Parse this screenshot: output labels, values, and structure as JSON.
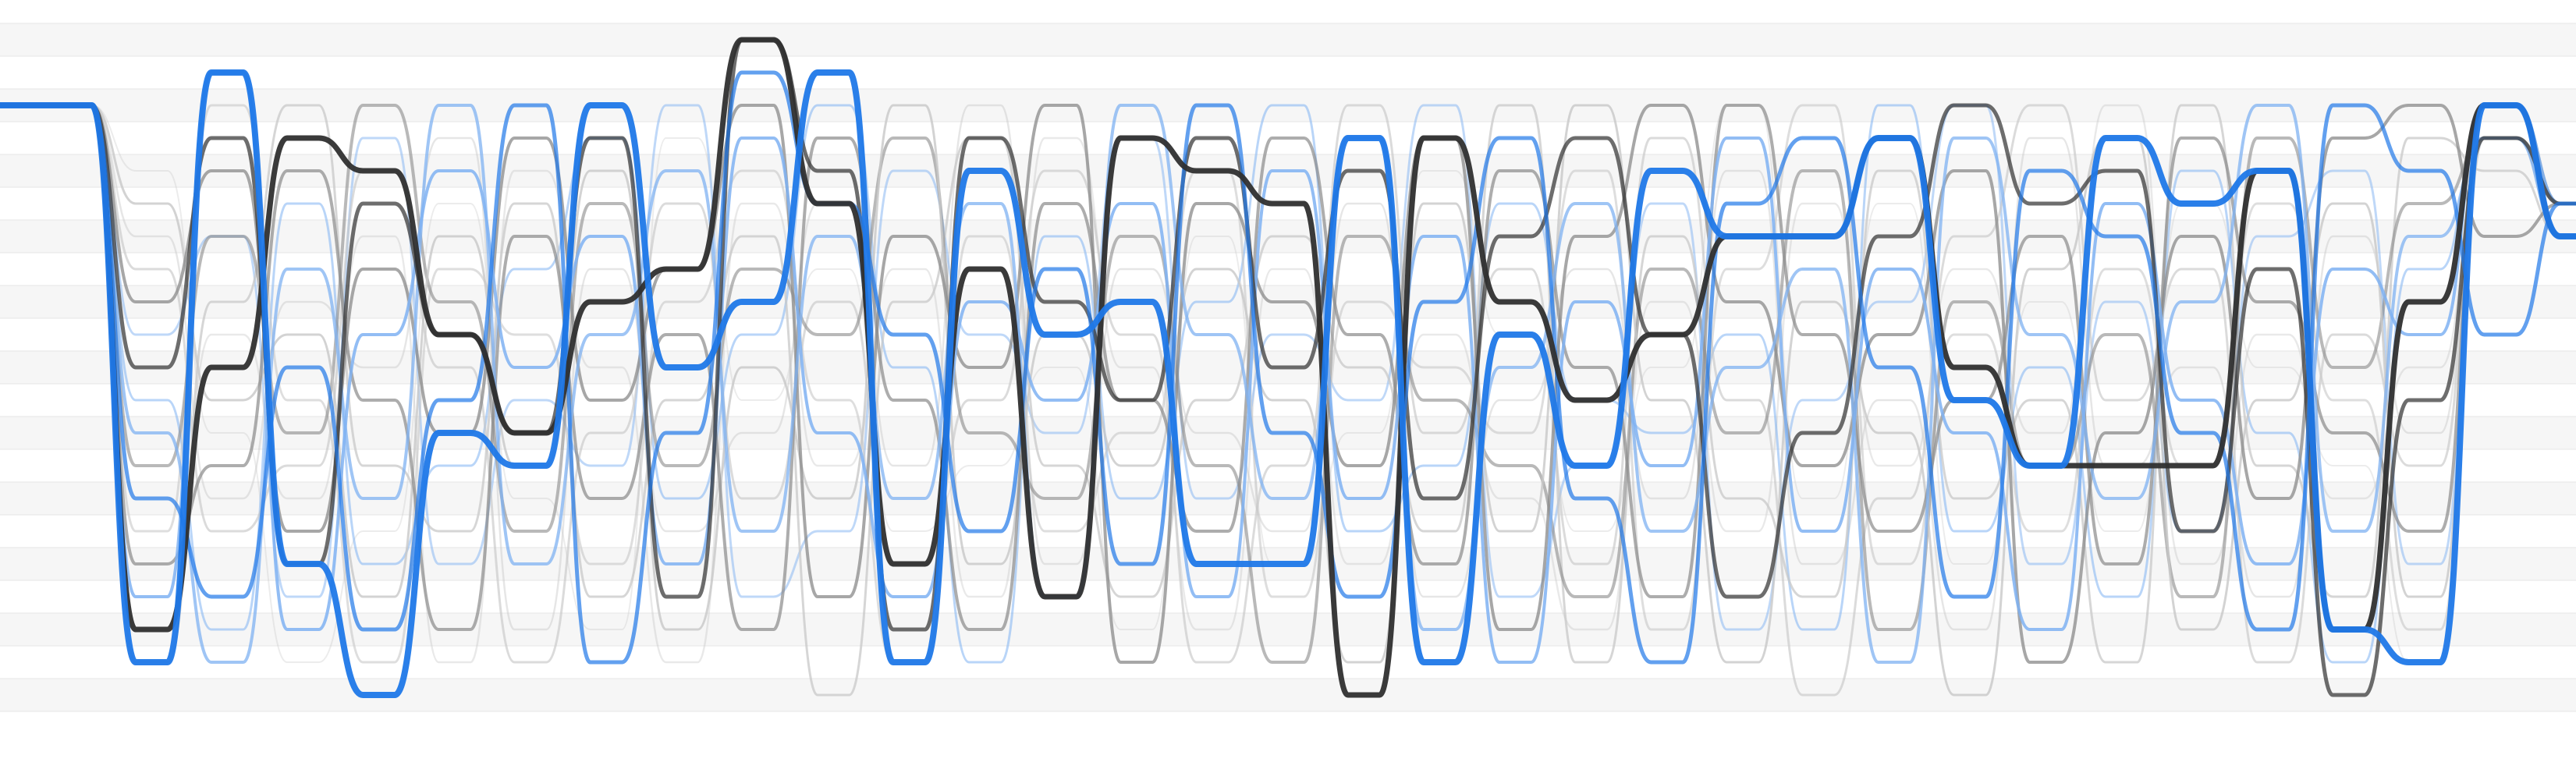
{
  "diagram": {
    "type": "line-trajectories",
    "rows": 22,
    "stages": 35,
    "colors": {
      "background": "#ffffff",
      "band_light": "#f6f6f6",
      "band_line": "#e6e6e6",
      "blue_main": "#1f78e8",
      "blue_light": "#7fb2f2",
      "black_main": "#2f2f2f",
      "gray_mid": "#8a8a8a",
      "gray_light": "#c8c8c8"
    },
    "trajectories": [
      {
        "name": "black-main",
        "color": "black_main",
        "opacity": 0.95,
        "width": 7,
        "rows": [
          2,
          2,
          18,
          10,
          3,
          4,
          9,
          12,
          8,
          7,
          0,
          5,
          16,
          7,
          17,
          3,
          4,
          5,
          20,
          3,
          8,
          11,
          9,
          6,
          6,
          3,
          10,
          13,
          13,
          13,
          4,
          18,
          8,
          2,
          6
        ]
      },
      {
        "name": "blue-main",
        "color": "blue_main",
        "opacity": 0.95,
        "width": 8,
        "rows": [
          2,
          2,
          19,
          1,
          16,
          20,
          12,
          13,
          2,
          10,
          8,
          1,
          19,
          4,
          9,
          8,
          16,
          16,
          3,
          19,
          9,
          13,
          4,
          6,
          6,
          3,
          11,
          13,
          3,
          5,
          4,
          18,
          19,
          2,
          6
        ]
      },
      {
        "name": "black-b",
        "color": "black_main",
        "opacity": 0.7,
        "width": 5,
        "rows": [
          2,
          2,
          10,
          3,
          16,
          5,
          9,
          12,
          3,
          17,
          0,
          4,
          18,
          3,
          8,
          11,
          3,
          10,
          4,
          14,
          6,
          3,
          9,
          17,
          12,
          6,
          2,
          5,
          4,
          15,
          7,
          20,
          11,
          3,
          5
        ]
      },
      {
        "name": "blue-b",
        "color": "blue_main",
        "opacity": 0.7,
        "width": 5,
        "rows": [
          2,
          2,
          14,
          17,
          10,
          18,
          11,
          2,
          19,
          12,
          1,
          5,
          9,
          15,
          7,
          16,
          2,
          12,
          17,
          8,
          3,
          14,
          19,
          5,
          3,
          10,
          17,
          4,
          6,
          12,
          18,
          2,
          4,
          9,
          5
        ]
      },
      {
        "name": "gray-a",
        "color": "gray_mid",
        "opacity": 0.75,
        "width": 4,
        "rows": [
          2,
          2,
          8,
          4,
          15,
          7,
          12,
          3,
          11,
          7,
          2,
          17,
          6,
          10,
          2,
          19,
          5,
          8,
          13,
          3,
          18,
          6,
          2,
          8,
          13,
          9,
          4,
          19,
          12,
          6,
          14,
          3,
          2,
          6,
          5
        ]
      },
      {
        "name": "gray-b",
        "color": "gray_mid",
        "opacity": 0.7,
        "width": 4,
        "rows": [
          2,
          2,
          16,
          13,
          4,
          11,
          18,
          6,
          14,
          9,
          18,
          3,
          11,
          18,
          5,
          11,
          15,
          3,
          9,
          16,
          4,
          10,
          17,
          2,
          9,
          15,
          11,
          6,
          16,
          3,
          8,
          12,
          15,
          2,
          5
        ]
      },
      {
        "name": "gray-c",
        "color": "gray_mid",
        "opacity": 0.6,
        "width": 4,
        "rows": [
          2,
          2,
          13,
          6,
          12,
          2,
          8,
          15,
          5,
          13,
          7,
          9,
          3,
          12,
          14,
          6,
          13,
          19,
          6,
          11,
          13,
          17,
          7,
          12,
          4,
          18,
          8,
          13,
          9,
          17,
          3,
          10,
          5,
          3,
          5
        ]
      },
      {
        "name": "blue-c",
        "color": "blue_light",
        "opacity": 0.85,
        "width": 4,
        "rows": [
          2,
          2,
          17,
          1,
          18,
          9,
          4,
          10,
          6,
          16,
          3,
          12,
          17,
          8,
          11,
          5,
          17,
          4,
          14,
          6,
          19,
          8,
          13,
          3,
          15,
          7,
          12,
          18,
          5,
          11,
          16,
          7,
          9,
          2,
          5
        ]
      },
      {
        "name": "blue-d",
        "color": "blue_light",
        "opacity": 0.75,
        "width": 4,
        "rows": [
          2,
          2,
          12,
          19,
          7,
          14,
          2,
          16,
          9,
          4,
          15,
          6,
          14,
          5,
          17,
          2,
          9,
          14,
          3,
          18,
          10,
          5,
          15,
          10,
          7,
          19,
          3,
          9,
          14,
          8,
          2,
          15,
          6,
          3,
          6
        ]
      },
      {
        "name": "gray-d",
        "color": "gray_light",
        "opacity": 0.8,
        "width": 3,
        "rows": [
          2,
          2,
          5,
          11,
          9,
          17,
          6,
          13,
          4,
          18,
          10,
          14,
          2,
          16,
          9,
          13,
          7,
          11,
          19,
          5,
          15,
          2,
          11,
          19,
          8,
          12,
          20,
          7,
          3,
          18,
          11,
          5,
          17,
          2,
          5
        ]
      },
      {
        "name": "gray-e",
        "color": "gray_light",
        "opacity": 0.75,
        "width": 3,
        "rows": [
          2,
          2,
          19,
          8,
          2,
          13,
          15,
          5,
          17,
          11,
          6,
          20,
          8,
          3,
          13,
          17,
          11,
          6,
          10,
          15,
          2,
          19,
          6,
          14,
          17,
          4,
          14,
          11,
          19,
          2,
          13,
          17,
          3,
          4,
          6
        ]
      },
      {
        "name": "gray-f",
        "color": "gray_light",
        "opacity": 0.65,
        "width": 3,
        "rows": [
          2,
          2,
          7,
          15,
          13,
          4,
          10,
          19,
          12,
          5,
          14,
          8,
          16,
          11,
          4,
          9,
          19,
          13,
          2,
          12,
          7,
          16,
          3,
          11,
          20,
          14,
          6,
          2,
          11,
          7,
          19,
          9,
          13,
          2,
          5
        ]
      },
      {
        "name": "gray-g",
        "color": "gray_light",
        "opacity": 0.6,
        "width": 3,
        "rows": [
          2,
          2,
          15,
          2,
          11,
          19,
          7,
          9,
          16,
          8,
          4,
          11,
          19,
          6,
          15,
          12,
          4,
          17,
          8,
          10,
          12,
          4,
          18,
          7,
          2,
          16,
          9,
          15,
          7,
          13,
          5,
          11,
          18,
          3,
          6
        ]
      },
      {
        "name": "blue-e",
        "color": "blue_light",
        "opacity": 0.55,
        "width": 3,
        "rows": [
          2,
          2,
          11,
          18,
          5,
          16,
          13,
          7,
          3,
          14,
          9,
          2,
          10,
          19,
          6,
          14,
          8,
          2,
          15,
          13,
          5,
          11,
          12,
          9,
          18,
          2,
          15,
          10,
          17,
          4,
          12,
          19,
          7,
          2,
          5
        ]
      },
      {
        "name": "blue-f",
        "color": "blue_light",
        "opacity": 0.5,
        "width": 3,
        "rows": [
          2,
          2,
          9,
          6,
          17,
          3,
          16,
          11,
          13,
          2,
          17,
          15,
          4,
          9,
          12,
          3,
          14,
          9,
          11,
          2,
          17,
          13,
          5,
          18,
          11,
          8,
          2,
          16,
          8,
          15,
          6,
          4,
          16,
          3,
          6
        ]
      },
      {
        "name": "gray-h",
        "color": "gray_light",
        "opacity": 0.45,
        "width": 2.5,
        "rows": [
          2,
          2,
          6,
          14,
          8,
          10,
          3,
          18,
          7,
          15,
          12,
          5,
          13,
          2,
          16,
          7,
          12,
          15,
          5,
          17,
          11,
          7,
          14,
          4,
          16,
          11,
          18,
          3,
          13,
          10,
          17,
          6,
          12,
          2,
          5
        ]
      },
      {
        "name": "gray-i",
        "color": "gray_light",
        "opacity": 0.4,
        "width": 2.5,
        "rows": [
          2,
          2,
          18,
          9,
          14,
          6,
          19,
          4,
          10,
          19,
          5,
          13,
          7,
          17,
          3,
          10,
          18,
          7,
          16,
          9,
          14,
          18,
          8,
          15,
          5,
          13,
          7,
          12,
          2,
          16,
          9,
          14,
          10,
          3,
          6
        ]
      },
      {
        "name": "gray-j",
        "color": "gray_light",
        "opacity": 0.35,
        "width": 2,
        "rows": [
          2,
          2,
          4,
          12,
          19,
          15,
          5,
          14,
          18,
          3,
          11,
          7,
          15,
          13,
          10,
          18,
          6,
          16,
          12,
          4,
          9,
          15,
          10,
          2,
          14,
          5,
          16,
          8,
          15,
          5,
          10,
          13,
          19,
          2,
          5
        ]
      }
    ]
  }
}
